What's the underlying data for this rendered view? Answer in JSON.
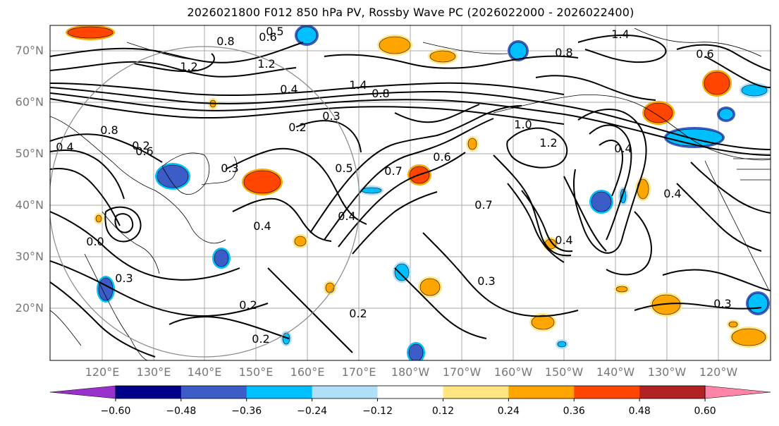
{
  "title": "2026021800 F012 850 hPa PV, Rossby Wave PC (2026022000 - 2026022400)",
  "lat_labels": [
    "70°N",
    "60°N",
    "50°N",
    "40°N",
    "30°N",
    "20°N"
  ],
  "lon_labels": [
    "120°E",
    "130°E",
    "140°E",
    "150°E",
    "160°E",
    "170°E",
    "180°W",
    "170°W",
    "160°W",
    "150°W",
    "140°W",
    "130°W",
    "120°W"
  ],
  "colorbar": {
    "ticks": [
      "−0.60",
      "−0.48",
      "−0.36",
      "−0.24",
      "−0.12",
      "0.12",
      "0.24",
      "0.36",
      "0.48",
      "0.60"
    ],
    "colors": [
      "#9932cc",
      "#00008b",
      "#3c5cc8",
      "#00bfff",
      "#b0e0f8",
      "#ffffff",
      "#ffe680",
      "#ffa500",
      "#ff4500",
      "#b22222",
      "#ff85a8"
    ]
  },
  "contour_labels": [
    "0.5",
    "0.8",
    "0.6",
    "1.4",
    "1.2",
    "0.8",
    "1.2",
    "1.4",
    "0.4",
    "0.8",
    "0.6",
    "0.2",
    "0.3",
    "0.5",
    "0.7",
    "0.6",
    "1.0",
    "1.2",
    "0.4",
    "0.8",
    "0.6",
    "0.4",
    "0.2",
    "0.3",
    "0.4",
    "0.2",
    "0.3",
    "0.2",
    "0.2",
    "0.4",
    "0.7",
    "0.3",
    "0.4",
    "0.3",
    "0.4",
    "0.0"
  ]
}
